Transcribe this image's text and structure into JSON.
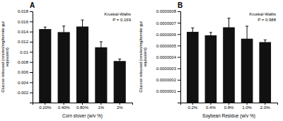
{
  "chart_data": [
    {
      "type": "bar",
      "title": "A",
      "categories": [
        "0.20%",
        "0.40%",
        "0.80%",
        "1%",
        "2%"
      ],
      "values": [
        0.0145,
        0.0139,
        0.015,
        0.0109,
        0.0082
      ],
      "errors": [
        0.0004,
        0.0012,
        0.0013,
        0.0011,
        0.0004
      ],
      "color": "#111111",
      "xlabel": "Corn stover (w/v %)",
      "ylabel": "Glucose released (nmoles/mg/termite gut\nequivalent)",
      "ylim": [
        0,
        0.018
      ],
      "yticks": [
        0.002,
        0.004,
        0.006,
        0.008,
        0.01,
        0.012,
        0.014,
        0.016,
        0.018
      ],
      "annotation": "Kruskal-Wallis\nP = 0.169"
    },
    {
      "type": "bar",
      "title": "B",
      "categories": [
        "0.2%",
        "0.4%",
        "0.8%",
        "1.0%",
        "2.0%"
      ],
      "values": [
        6.2e-07,
        5.9e-07,
        6.6e-07,
        5.6e-07,
        5.3e-07
      ],
      "errors": [
        3.5e-08,
        2.5e-08,
        8e-08,
        1.1e-07,
        2e-08
      ],
      "color": "#111111",
      "xlabel": "Soybean Residue (w/v %)",
      "ylabel": "Glucose released (nmoles/mg/termite gut\nequivalent)",
      "ylim": [
        0,
        8e-07
      ],
      "yticks": [
        {
          "value": 1e-07,
          "label": "0.0000001"
        },
        {
          "value": 2e-07,
          "label": "0.0000002"
        },
        {
          "value": 3e-07,
          "label": "0.0000003"
        },
        {
          "value": 4e-07,
          "label": "0.0000004"
        },
        {
          "value": 5e-07,
          "label": "0.0000005"
        },
        {
          "value": 6e-07,
          "label": "0.0000006"
        },
        {
          "value": 7e-07,
          "label": "0.0000007"
        },
        {
          "value": 8e-07,
          "label": "0.0000008"
        }
      ],
      "annotation": "Kruskal-Wallis\nP = 0.988"
    }
  ]
}
